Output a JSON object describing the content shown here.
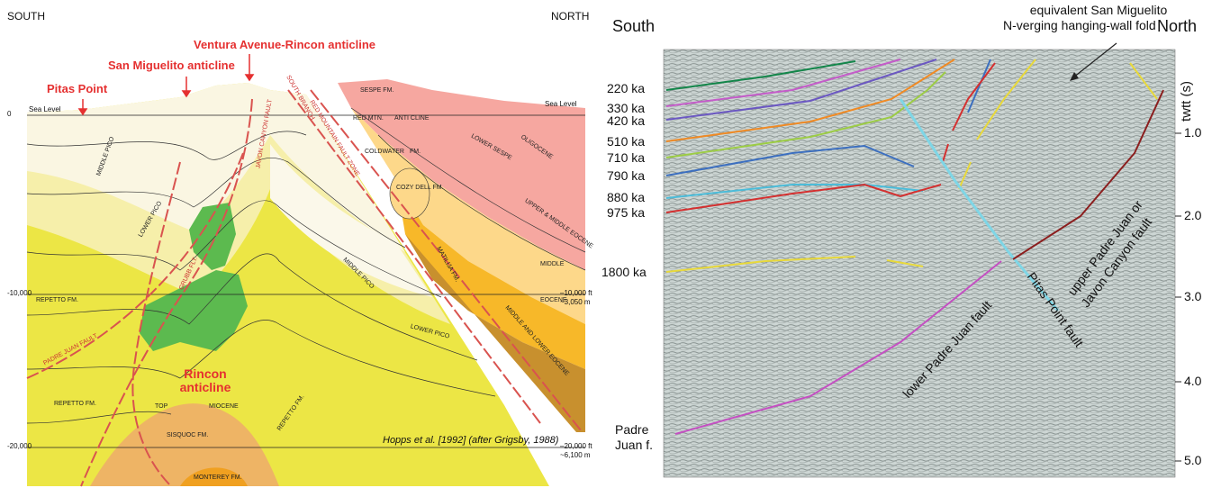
{
  "left": {
    "south": "SOUTH",
    "north": "NORTH",
    "ventura": "Ventura Avenue-Rincon anticline",
    "san_miguelito": "San Miguelito anticline",
    "pitas_point": "Pitas Point",
    "rincon": "Rincon anticline",
    "sea_level": [
      "Sea Level",
      "Sea Level"
    ],
    "depth_left": [
      "0",
      "-10,000",
      "-20,000"
    ],
    "depth_right": [
      "–10,000 ft",
      "~3,050 m",
      "–20,000 ft",
      "~6,100 m"
    ],
    "formations": [
      "MIDDLE PICO",
      "LOWER PICO",
      "REPETTO FM.",
      "PADRE JUAN FAULT",
      "GRUBB FLT.",
      "JAVON CANYON FAULT",
      "SOUTH BRANCH",
      "RED MOUNTAIN FAULT ZONE",
      "SESPE FM.",
      "RED MTN.",
      "ANTI CLINE",
      "COLDWATER",
      "FM.",
      "COZY DELL FM.",
      "LOWER SESPE",
      "OLIGOCENE",
      "UPPER & MIDDLE EOCENE",
      "MIDDLE",
      "EOCENE",
      "MIDDLE AND LOWER EOCENE",
      "MATILIJA FM.",
      "MIDDLE PICO",
      "LOWER PICO",
      "REPETTO FM.",
      "REPETTO FM.",
      "TOP",
      "MIOCENE",
      "SISQUOC FM.",
      "MONTEREY FM."
    ],
    "credit": "Hopps et al. [1992] (after Grigsby, 1988)"
  },
  "right": {
    "south": "South",
    "north": "North",
    "annotation": [
      "equivalent San Miguelito",
      "N-verging hanging-wall fold"
    ],
    "ages": [
      "220 ka",
      "330 ka",
      "420 ka",
      "510 ka",
      "710 ka",
      "790 ka",
      "880 ka",
      "975 ka",
      "1800 ka"
    ],
    "padre_juan": [
      "Padre",
      "Juan f."
    ],
    "axis_title": "twtt (s)",
    "ticks": [
      "1.0",
      "2.0",
      "3.0",
      "4.0",
      "5.0"
    ],
    "faults": [
      "upper Padre Juan or",
      "Javon Canyon fault",
      "Pitas Point fault",
      "lower Padre Juan fault"
    ]
  }
}
